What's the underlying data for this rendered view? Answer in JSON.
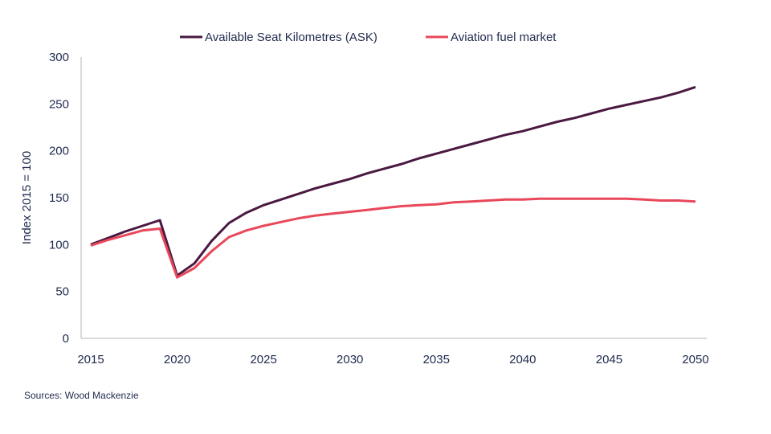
{
  "chart_data": {
    "type": "line",
    "title": "",
    "xlabel": "",
    "ylabel": "Index 2015 = 100",
    "xlim": [
      2015,
      2050
    ],
    "ylim": [
      0,
      300
    ],
    "x_ticks": [
      2015,
      2020,
      2025,
      2030,
      2035,
      2040,
      2045,
      2050
    ],
    "y_ticks": [
      0,
      50,
      100,
      150,
      200,
      250,
      300
    ],
    "grid": false,
    "legend_position": "top",
    "x": [
      2015,
      2016,
      2017,
      2018,
      2019,
      2020,
      2021,
      2022,
      2023,
      2024,
      2025,
      2026,
      2027,
      2028,
      2029,
      2030,
      2031,
      2032,
      2033,
      2034,
      2035,
      2036,
      2037,
      2038,
      2039,
      2040,
      2041,
      2042,
      2043,
      2044,
      2045,
      2046,
      2047,
      2048,
      2049,
      2050
    ],
    "series": [
      {
        "name": "Available Seat Kilometres (ASK)",
        "color": "#4a1942",
        "values": [
          100,
          107,
          114,
          120,
          126,
          67,
          80,
          104,
          123,
          134,
          142,
          148,
          154,
          160,
          165,
          170,
          176,
          181,
          186,
          192,
          197,
          202,
          207,
          212,
          217,
          221,
          226,
          231,
          235,
          240,
          245,
          249,
          253,
          257,
          262,
          268
        ]
      },
      {
        "name": "Aviation fuel market",
        "color": "#e8485a",
        "values": [
          99,
          105,
          110,
          115,
          117,
          65,
          75,
          93,
          108,
          115,
          120,
          124,
          128,
          131,
          133,
          135,
          137,
          139,
          141,
          142,
          143,
          145,
          146,
          147,
          148,
          148,
          149,
          149,
          149,
          149,
          149,
          149,
          148,
          147,
          147,
          146
        ]
      }
    ]
  },
  "source": "Sources: Wood Mackenzie"
}
